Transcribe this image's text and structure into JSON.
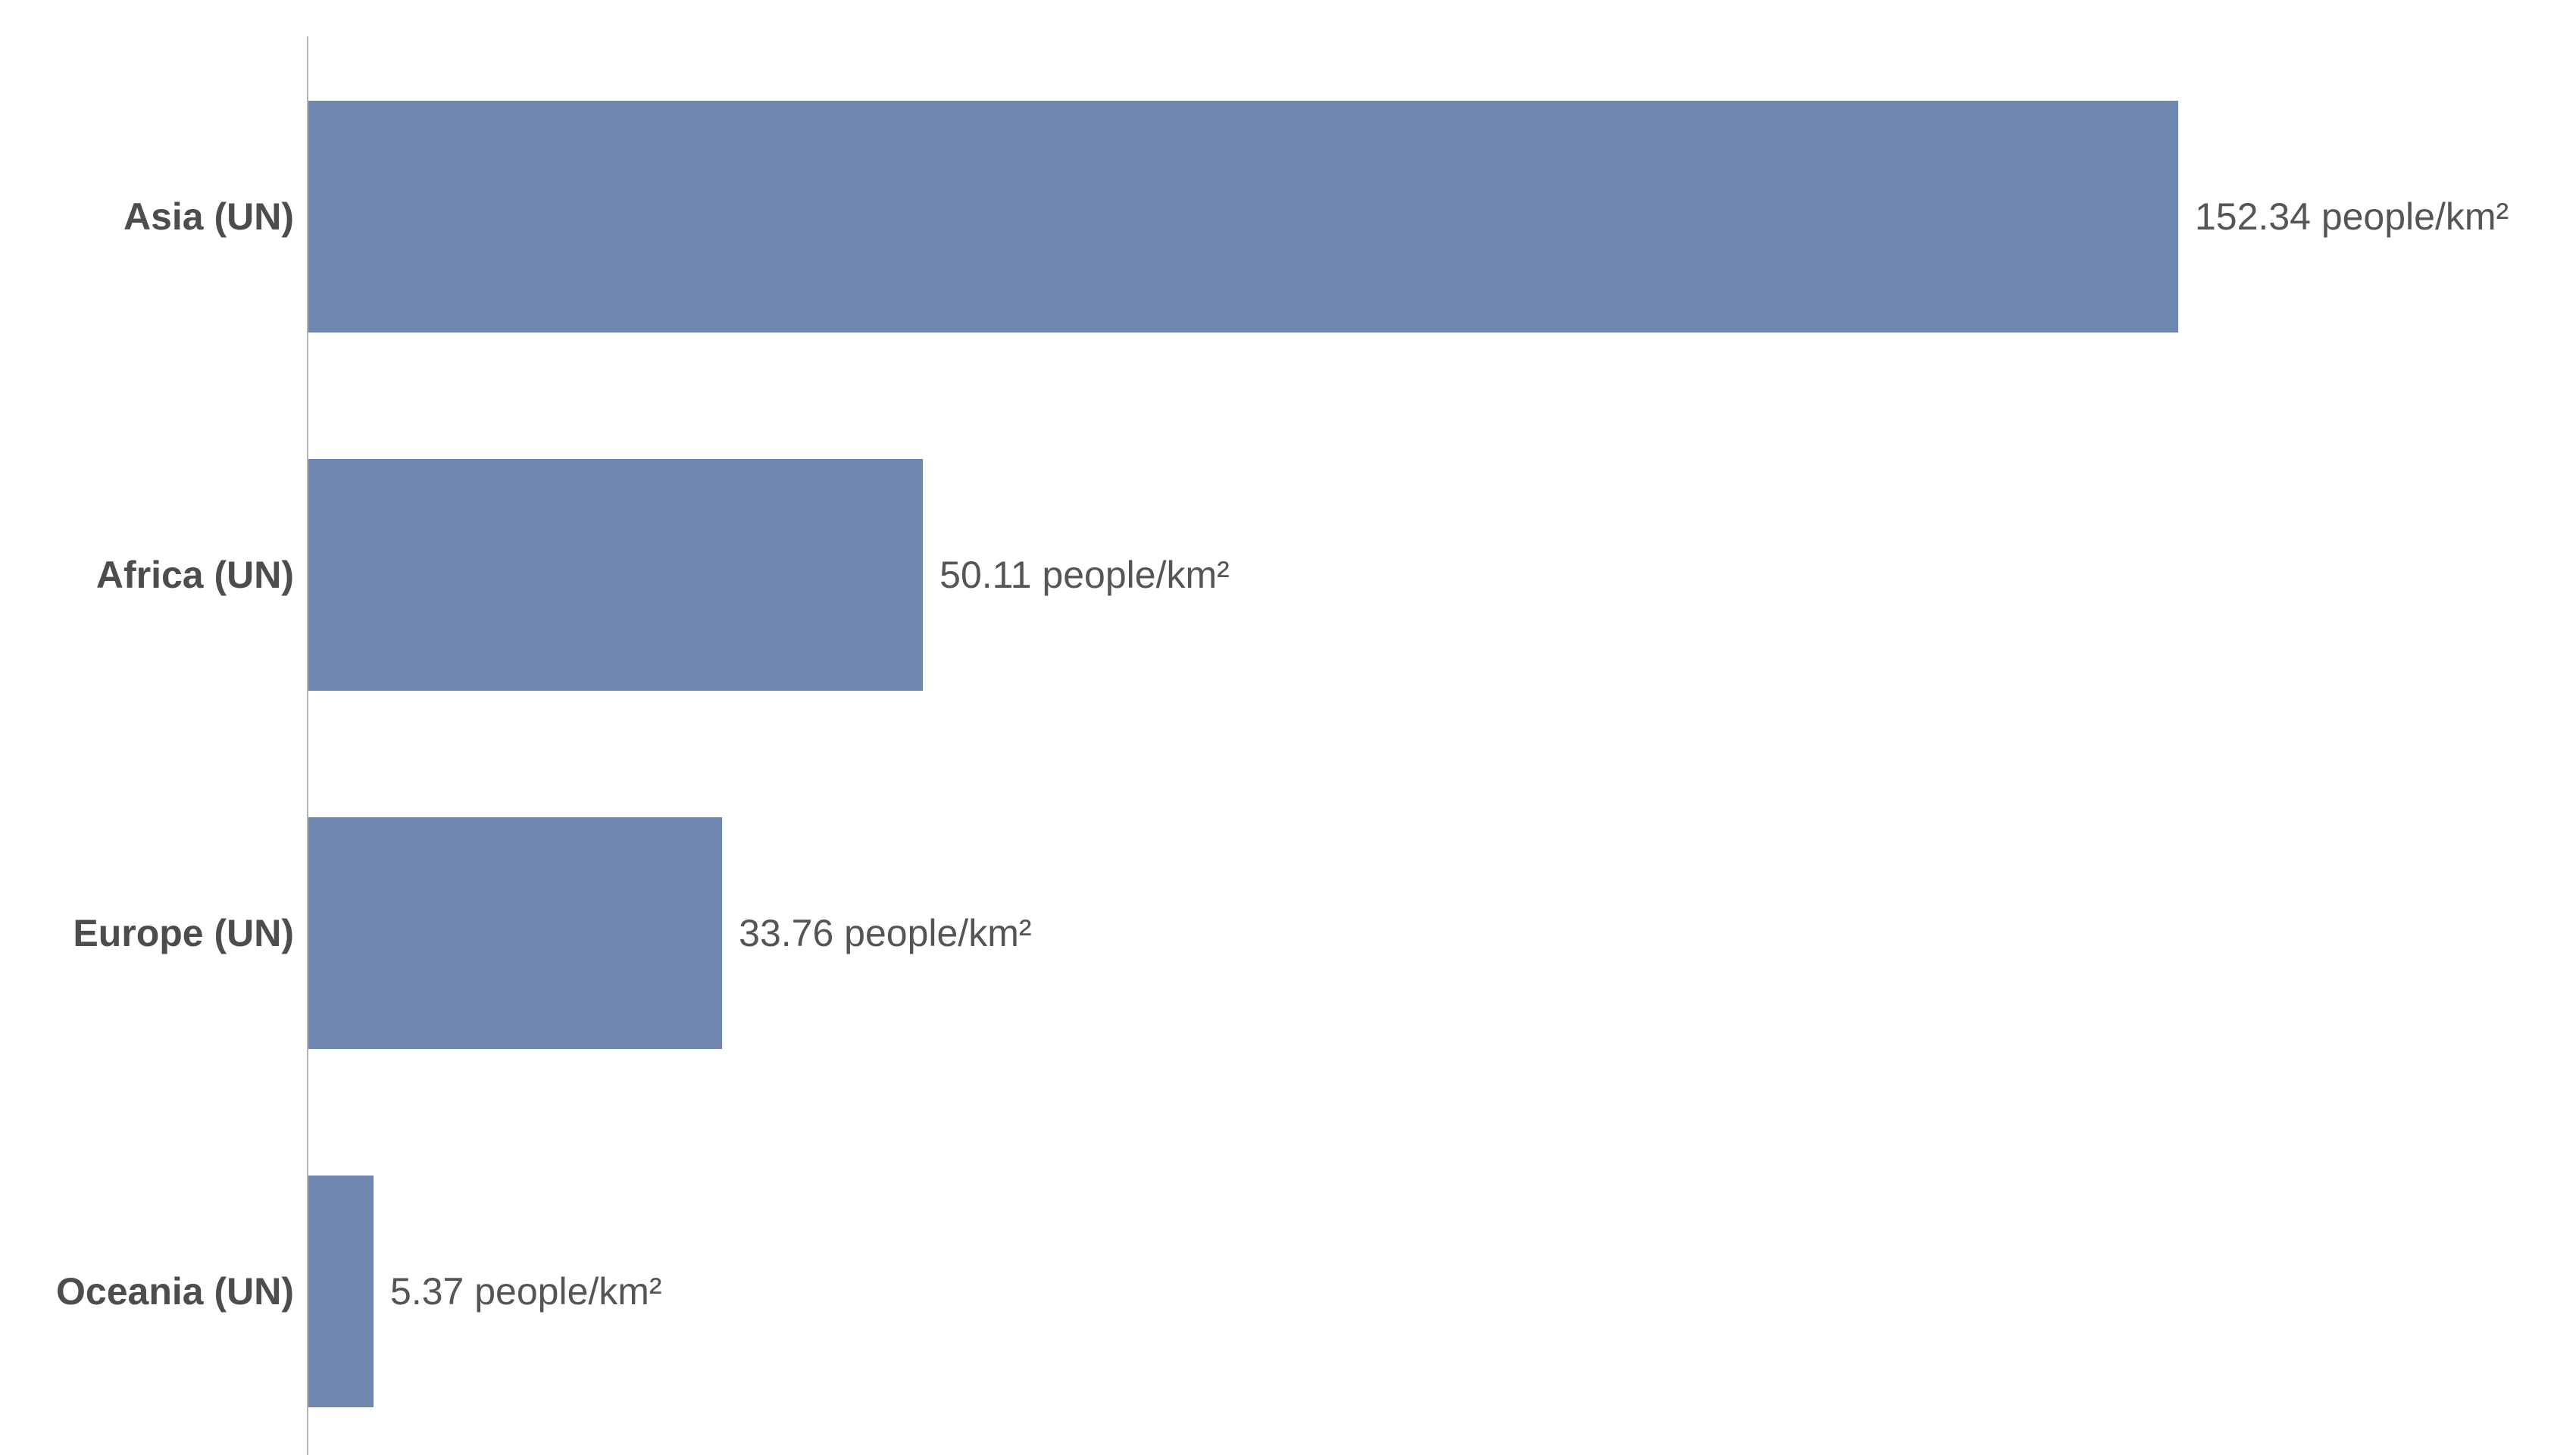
{
  "chart_data": {
    "type": "bar",
    "orientation": "horizontal",
    "categories": [
      "Asia (UN)",
      "Africa (UN)",
      "Europe (UN)",
      "Oceania (UN)"
    ],
    "values": [
      152.34,
      50.11,
      33.76,
      5.37
    ],
    "value_labels": [
      "152.34 people/km²",
      "50.11 people/km²",
      "33.76 people/km²",
      "5.37 people/km²"
    ],
    "unit": "people/km²",
    "xlim": [
      0,
      152.34
    ],
    "grid": false,
    "colors": {
      "bar": "#6f87ae",
      "axis": "#b3b3b3",
      "category_text": "#4d4d4d",
      "value_text": "#555555"
    }
  }
}
